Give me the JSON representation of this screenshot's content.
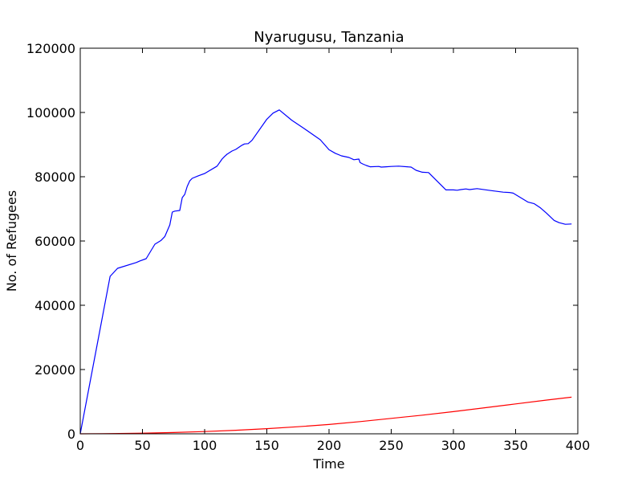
{
  "chart_data": {
    "type": "line",
    "title": "Nyarugusu, Tanzania",
    "xlabel": "Time",
    "ylabel": "No. of Refugees",
    "xlim": [
      0,
      400
    ],
    "ylim": [
      0,
      120000
    ],
    "xticks": [
      0,
      50,
      100,
      150,
      200,
      250,
      300,
      350,
      400
    ],
    "yticks": [
      0,
      20000,
      40000,
      60000,
      80000,
      100000,
      120000
    ],
    "grid": false,
    "legend": "none",
    "series": [
      {
        "color": "#0000ff",
        "x": [
          0,
          24,
          30,
          45,
          48,
          53,
          60,
          65,
          68,
          72,
          74,
          76,
          80,
          82,
          84,
          86,
          88,
          90,
          95,
          100,
          110,
          114,
          116,
          118,
          122,
          125,
          130,
          132,
          135,
          138,
          150,
          155,
          160,
          170,
          180,
          193,
          200,
          205,
          210,
          216,
          220,
          224,
          225,
          227,
          230,
          233,
          240,
          242,
          246,
          250,
          256,
          266,
          270,
          275,
          280,
          294,
          300,
          303,
          306,
          310,
          313,
          319,
          330,
          340,
          345,
          348,
          360,
          365,
          370,
          375,
          381,
          385,
          390,
          395
        ],
        "y": [
          0,
          49000,
          51500,
          53300,
          53800,
          54500,
          59000,
          60200,
          61400,
          65000,
          69000,
          69300,
          69500,
          73500,
          74500,
          77000,
          78700,
          79500,
          80300,
          81000,
          83300,
          85500,
          86300,
          87000,
          88000,
          88500,
          89800,
          90200,
          90300,
          91300,
          97900,
          99800,
          100800,
          97600,
          95000,
          91500,
          88400,
          87300,
          86500,
          86000,
          85300,
          85500,
          84400,
          84000,
          83500,
          83100,
          83200,
          83000,
          83100,
          83200,
          83300,
          83000,
          82000,
          81400,
          81300,
          75900,
          75900,
          75800,
          76000,
          76200,
          76000,
          76300,
          75700,
          75200,
          75100,
          74900,
          72100,
          71600,
          70300,
          68600,
          66400,
          65700,
          65200,
          65300
        ]
      },
      {
        "color": "#ff0000",
        "x": [
          0,
          25,
          50,
          75,
          100,
          125,
          150,
          175,
          200,
          225,
          250,
          275,
          300,
          325,
          350,
          375,
          395
        ],
        "y": [
          0,
          60,
          180,
          400,
          700,
          1100,
          1600,
          2200,
          2900,
          3800,
          4800,
          5800,
          6900,
          8100,
          9300,
          10500,
          11400
        ]
      }
    ]
  }
}
